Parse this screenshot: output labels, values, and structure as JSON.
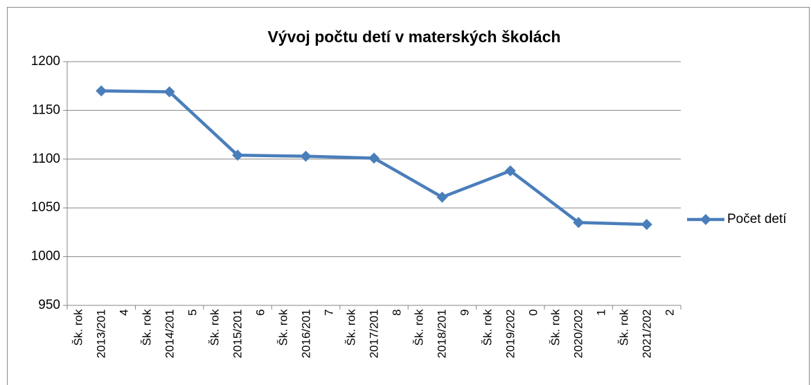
{
  "chart_data": {
    "type": "line",
    "title": "Vývoj počtu detí v materských školách",
    "categories": [
      "Šk. rok 2013/2014",
      "Šk. rok 2014/2015",
      "Šk. rok 2015/2016",
      "Šk. rok 2016/2017",
      "Šk. rok 2017/2018",
      "Šk. rok 2018/2019",
      "Šk. rok 2019/2020",
      "Šk. rok 2020/2021",
      "Šk. rok 2021/2022"
    ],
    "series": [
      {
        "name": "Počet detí",
        "color": "#4a7ebb",
        "values": [
          1170,
          1169,
          1104,
          1103,
          1101,
          1061,
          1088,
          1035,
          1033
        ]
      }
    ],
    "ylim": [
      950,
      1200
    ],
    "yticks": [
      950,
      1000,
      1050,
      1100,
      1150,
      1200
    ],
    "grid": true,
    "legend": "right"
  }
}
